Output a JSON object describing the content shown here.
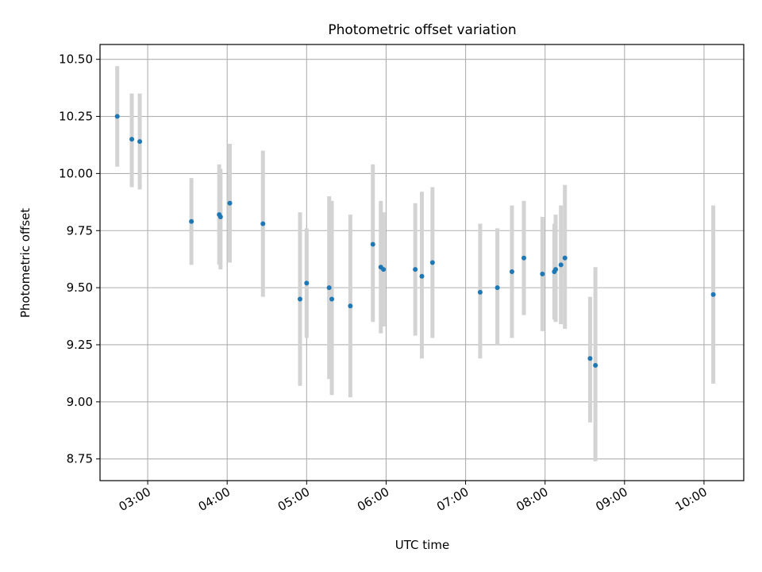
{
  "chart_data": {
    "type": "scatter",
    "title": "Photometric offset variation",
    "xlabel": "UTC time",
    "ylabel": "Photometric offset",
    "x_unit": "time of day (UTC)",
    "xlim": [
      "02:24",
      "10:30"
    ],
    "ylim": [
      8.655,
      10.565
    ],
    "x_ticks": [
      "03:00",
      "04:00",
      "05:00",
      "06:00",
      "07:00",
      "08:00",
      "09:00",
      "10:00"
    ],
    "y_ticks": [
      "8.75",
      "9.00",
      "9.25",
      "9.50",
      "9.75",
      "10.00",
      "10.25",
      "10.50"
    ],
    "grid": true,
    "colors": {
      "marker": "#1f77b4",
      "errorbar": "#d3d3d3",
      "grid": "#b0b0b0"
    },
    "points": [
      {
        "x": "02:37",
        "y": 10.25,
        "yerr_low": 10.03,
        "yerr_high": 10.47
      },
      {
        "x": "02:48",
        "y": 10.15,
        "yerr_low": 9.94,
        "yerr_high": 10.35
      },
      {
        "x": "02:54",
        "y": 10.14,
        "yerr_low": 9.93,
        "yerr_high": 10.35
      },
      {
        "x": "03:33",
        "y": 9.79,
        "yerr_low": 9.6,
        "yerr_high": 9.98
      },
      {
        "x": "03:54",
        "y": 9.82,
        "yerr_low": 9.6,
        "yerr_high": 10.04
      },
      {
        "x": "03:55",
        "y": 9.81,
        "yerr_low": 9.58,
        "yerr_high": 10.02
      },
      {
        "x": "04:02",
        "y": 9.87,
        "yerr_low": 9.61,
        "yerr_high": 10.13
      },
      {
        "x": "04:27",
        "y": 9.78,
        "yerr_low": 9.46,
        "yerr_high": 10.1
      },
      {
        "x": "04:55",
        "y": 9.45,
        "yerr_low": 9.07,
        "yerr_high": 9.83
      },
      {
        "x": "05:00",
        "y": 9.52,
        "yerr_low": 9.28,
        "yerr_high": 9.76
      },
      {
        "x": "05:17",
        "y": 9.5,
        "yerr_low": 9.1,
        "yerr_high": 9.9
      },
      {
        "x": "05:19",
        "y": 9.45,
        "yerr_low": 9.03,
        "yerr_high": 9.88
      },
      {
        "x": "05:33",
        "y": 9.42,
        "yerr_low": 9.02,
        "yerr_high": 9.82
      },
      {
        "x": "05:50",
        "y": 9.69,
        "yerr_low": 9.35,
        "yerr_high": 10.04
      },
      {
        "x": "05:56",
        "y": 9.59,
        "yerr_low": 9.3,
        "yerr_high": 9.88
      },
      {
        "x": "05:58",
        "y": 9.58,
        "yerr_low": 9.33,
        "yerr_high": 9.83
      },
      {
        "x": "06:22",
        "y": 9.58,
        "yerr_low": 9.29,
        "yerr_high": 9.87
      },
      {
        "x": "06:27",
        "y": 9.55,
        "yerr_low": 9.19,
        "yerr_high": 9.92
      },
      {
        "x": "06:35",
        "y": 9.61,
        "yerr_low": 9.28,
        "yerr_high": 9.94
      },
      {
        "x": "07:11",
        "y": 9.48,
        "yerr_low": 9.19,
        "yerr_high": 9.78
      },
      {
        "x": "07:24",
        "y": 9.5,
        "yerr_low": 9.25,
        "yerr_high": 9.76
      },
      {
        "x": "07:35",
        "y": 9.57,
        "yerr_low": 9.28,
        "yerr_high": 9.86
      },
      {
        "x": "07:44",
        "y": 9.63,
        "yerr_low": 9.38,
        "yerr_high": 9.88
      },
      {
        "x": "07:58",
        "y": 9.56,
        "yerr_low": 9.31,
        "yerr_high": 9.81
      },
      {
        "x": "08:07",
        "y": 9.57,
        "yerr_low": 9.36,
        "yerr_high": 9.78
      },
      {
        "x": "08:08",
        "y": 9.58,
        "yerr_low": 9.35,
        "yerr_high": 9.82
      },
      {
        "x": "08:12",
        "y": 9.6,
        "yerr_low": 9.34,
        "yerr_high": 9.86
      },
      {
        "x": "08:15",
        "y": 9.63,
        "yerr_low": 9.32,
        "yerr_high": 9.95
      },
      {
        "x": "08:34",
        "y": 9.19,
        "yerr_low": 8.91,
        "yerr_high": 9.46
      },
      {
        "x": "08:38",
        "y": 9.16,
        "yerr_low": 8.74,
        "yerr_high": 9.59
      },
      {
        "x": "10:07",
        "y": 9.47,
        "yerr_low": 9.08,
        "yerr_high": 9.86
      }
    ]
  }
}
